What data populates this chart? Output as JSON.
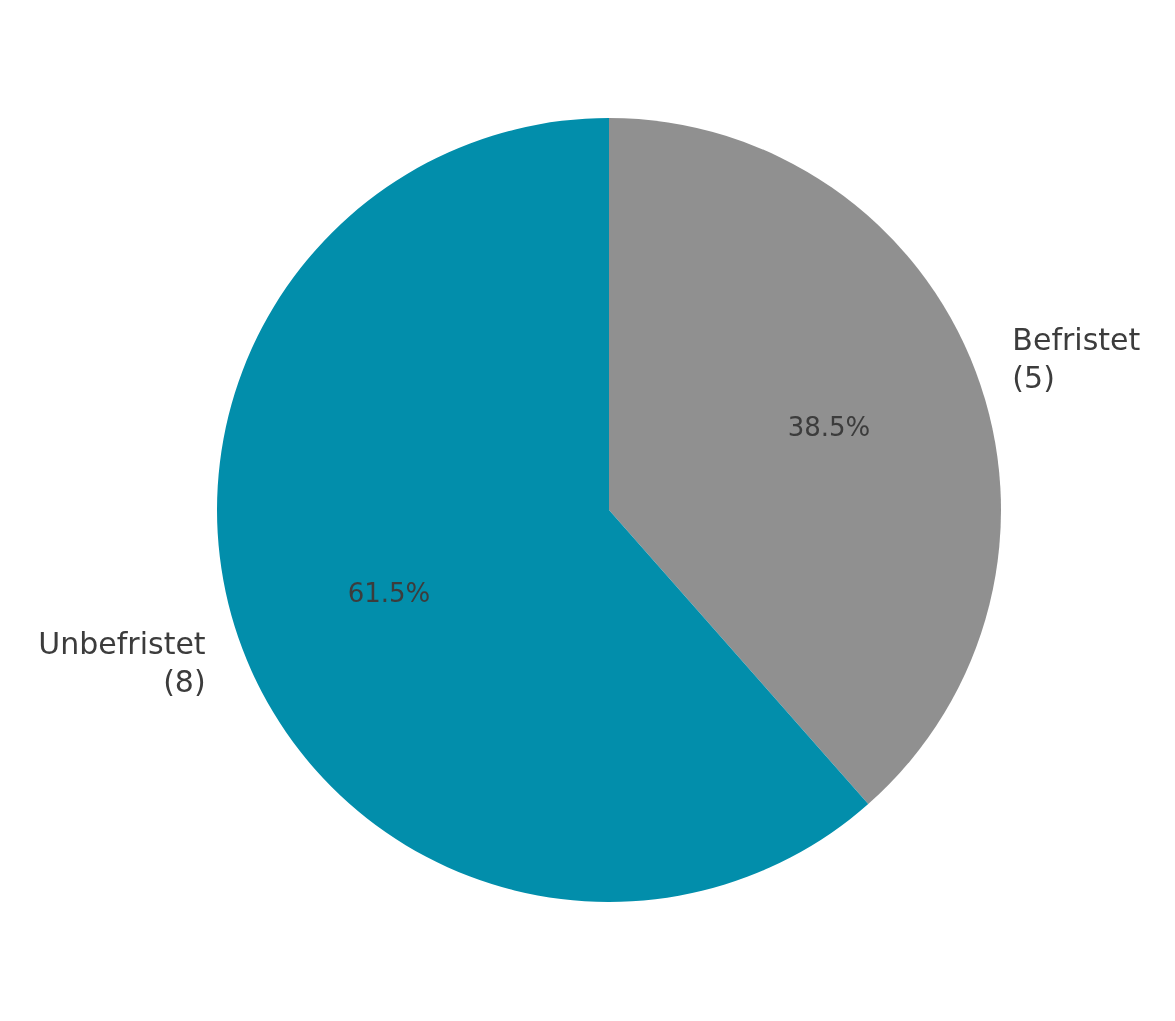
{
  "chart_data": {
    "type": "pie",
    "categories": [
      "Befristet\n(5)",
      "Unbefristet\n(8)"
    ],
    "values": [
      38.5,
      61.5
    ],
    "colors": [
      "#909090",
      "#028eab"
    ],
    "value_labels": [
      "38.5%",
      "61.5%"
    ]
  }
}
